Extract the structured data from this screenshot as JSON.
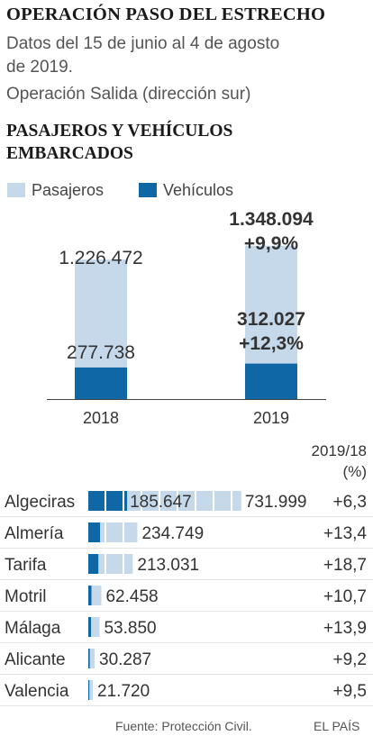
{
  "header": {
    "title": "OPERACIÓN PASO DEL ESTRECHO",
    "subtitle_line1": "Datos del 15 de junio al 4 de agosto",
    "subtitle_line2": "de 2019.",
    "subtitle_line3": "Operación Salida (dirección sur)"
  },
  "section_title_line1": "PASAJEROS Y VEHÍCULOS",
  "section_title_line2": "EMBARCADOS",
  "legend": [
    {
      "label": "Pasajeros",
      "color": "#c6d9eb"
    },
    {
      "label": "Vehículos",
      "color": "#0f67a6"
    }
  ],
  "chart_data": [
    {
      "type": "bar",
      "categories": [
        "2018",
        "2019"
      ],
      "series": [
        {
          "name": "Pasajeros",
          "values": [
            1226472,
            1348094
          ],
          "labels": [
            "1.226.472",
            "1.348.094"
          ]
        },
        {
          "name": "Vehículos",
          "values": [
            277738,
            312027
          ],
          "labels": [
            "277.738",
            "312.027"
          ]
        }
      ],
      "annotations": {
        "pasajeros_change_2019": "+9,9%",
        "vehiculos_change_2019": "+12,3%"
      }
    },
    {
      "type": "bar",
      "orientation": "horizontal",
      "change_header_line1": "2019/18",
      "change_header_line2": "(%)",
      "categories": [
        "Algeciras",
        "Almería",
        "Tarifa",
        "Motril",
        "Málaga",
        "Alicante",
        "Valencia"
      ],
      "series": [
        {
          "name": "Pasajeros",
          "values": [
            731999,
            234749,
            213031,
            62458,
            53850,
            30287,
            21720
          ],
          "labels": [
            "731.999",
            "234.749",
            "213.031",
            "62.458",
            "53.850",
            "30.287",
            "21.720"
          ]
        },
        {
          "name": "Vehículos",
          "values": [
            185647,
            56000,
            48000,
            15000,
            13000,
            7000,
            5000
          ],
          "labels": [
            "185.647",
            "",
            "",
            "",
            "",
            "",
            ""
          ]
        }
      ],
      "change": [
        "+6,3",
        "+13,4",
        "+18,7",
        "+10,7",
        "+13,9",
        "+9,2",
        "+9,5"
      ]
    }
  ],
  "footer": {
    "source": "Fuente: Protección Civil.",
    "brand": "EL PAÍS"
  }
}
